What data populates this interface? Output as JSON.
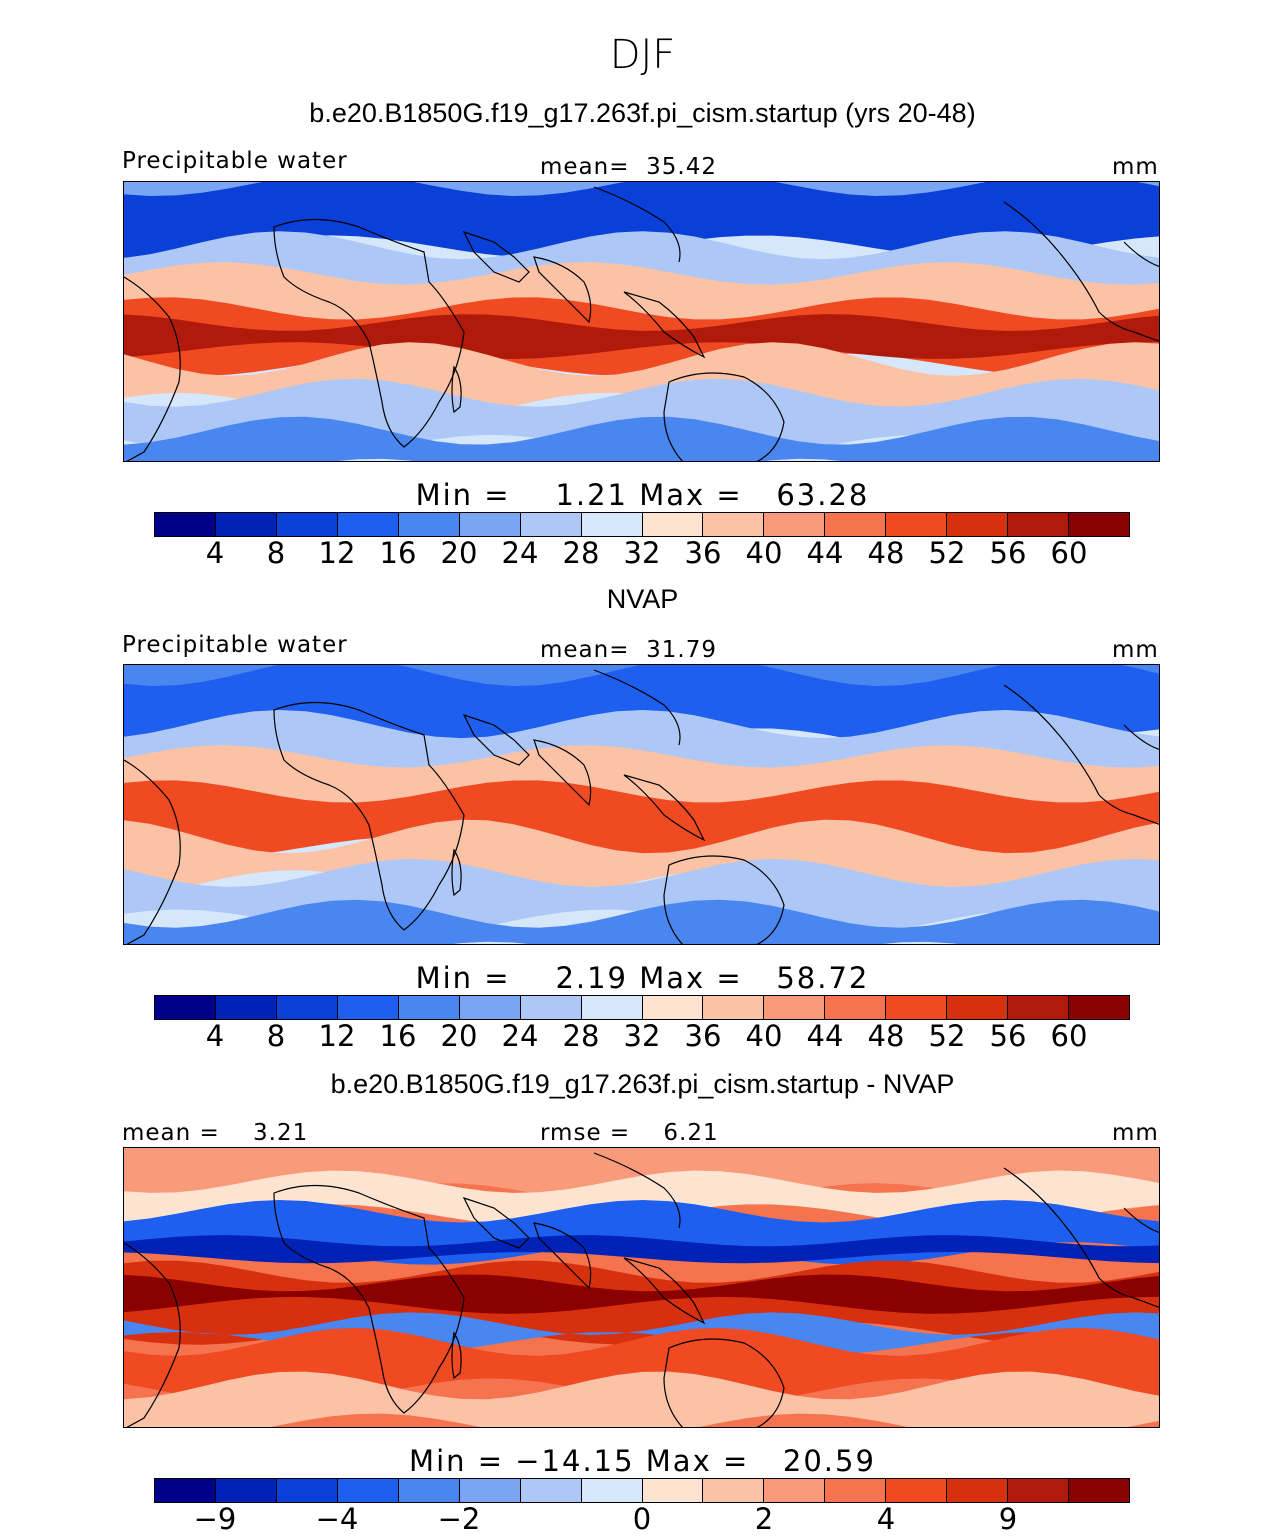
{
  "page": {
    "title": "DJF"
  },
  "palette": [
    "#00008b",
    "#0022b6",
    "#0a3fd8",
    "#1f5fef",
    "#4a86f0",
    "#7aa5f2",
    "#adc8f6",
    "#d6e6fb",
    "#fde4d0",
    "#fbc2a6",
    "#f99b7a",
    "#f5734f",
    "#ef4a22",
    "#d7300f",
    "#b01a0a",
    "#8b0000"
  ],
  "panels": [
    {
      "title": "b.e20.B1850G.f19_g17.263f.pi_cism.startup (yrs 20-48)",
      "left_label": "Precipitable water",
      "center_label": "mean=  35.42",
      "right_label": "mm",
      "minmax": "Min =    1.21 Max =   63.28",
      "min": 1.21,
      "max": 63.28,
      "mean": 35.42,
      "ticks": [
        "4",
        "8",
        "12",
        "16",
        "20",
        "24",
        "28",
        "32",
        "36",
        "40",
        "44",
        "48",
        "52",
        "56",
        "60"
      ]
    },
    {
      "title": "NVAP",
      "left_label": "Precipitable water",
      "center_label": "mean=  31.79",
      "right_label": "mm",
      "minmax": "Min =    2.19 Max =   58.72",
      "min": 2.19,
      "max": 58.72,
      "mean": 31.79,
      "ticks": [
        "4",
        "8",
        "12",
        "16",
        "20",
        "24",
        "28",
        "32",
        "36",
        "40",
        "44",
        "48",
        "52",
        "56",
        "60"
      ]
    },
    {
      "title": "b.e20.B1850G.f19_g17.263f.pi_cism.startup - NVAP",
      "left_label": "mean =    3.21",
      "center_label": "rmse =    6.21",
      "right_label": "mm",
      "minmax": "Min = −14.15 Max =   20.59",
      "min": -14.15,
      "max": 20.59,
      "mean": 3.21,
      "rmse": 6.21,
      "ticks": [
        "−9",
        "−4",
        "−2",
        "0",
        "2",
        "4",
        "9"
      ]
    }
  ]
}
